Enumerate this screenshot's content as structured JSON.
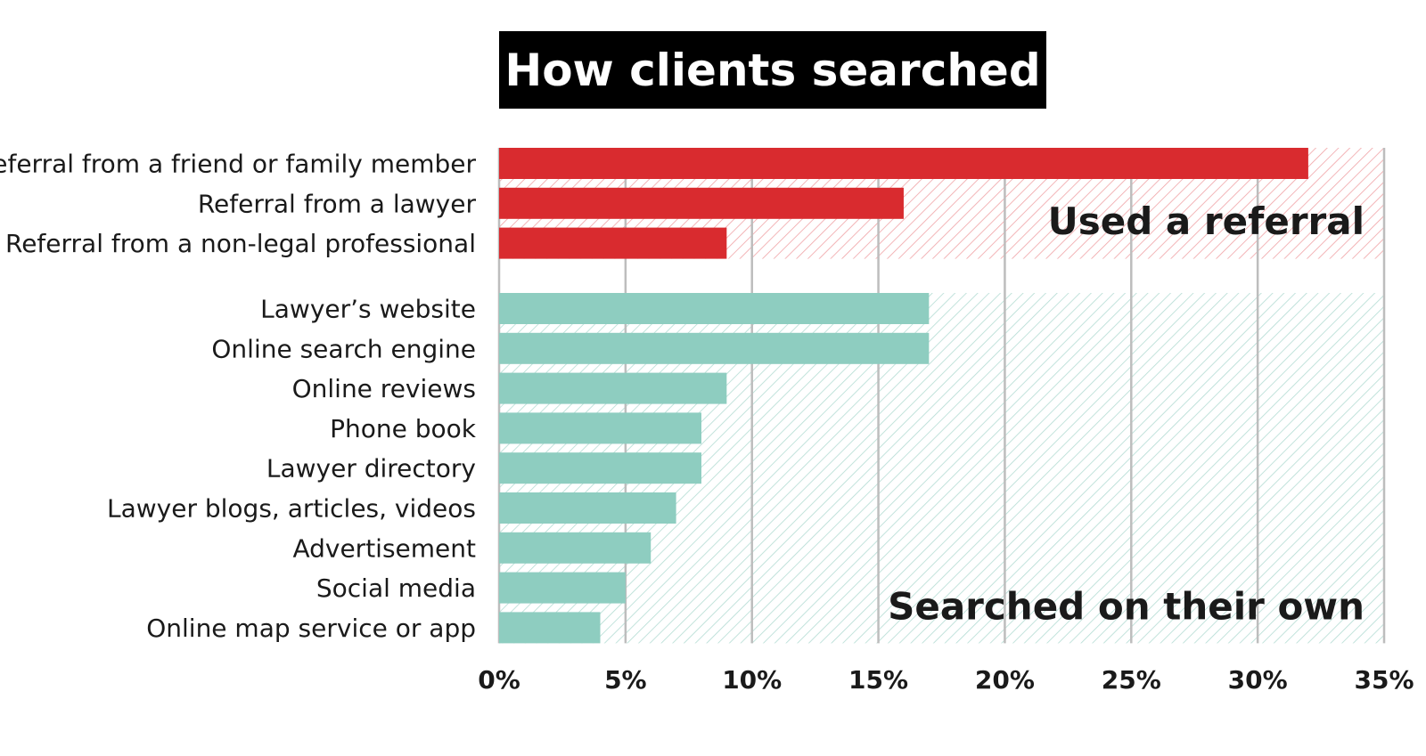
{
  "chart_data": {
    "type": "bar",
    "orientation": "horizontal",
    "title": "How clients searched",
    "xlabel": "",
    "ylabel": "",
    "xlim": [
      0,
      35
    ],
    "x_ticks": [
      "0%",
      "5%",
      "10%",
      "15%",
      "20%",
      "25%",
      "30%",
      "35%"
    ],
    "x_tick_values": [
      0,
      5,
      10,
      15,
      20,
      25,
      30,
      35
    ],
    "grid": true,
    "legend": "none",
    "groups": [
      {
        "label": "Used a referral",
        "color": "#d92b2f",
        "hatch_color": "#f0a3a6",
        "categories": [
          "Referral from a friend or family member",
          "Referral from a lawyer",
          "Referral from a non-legal professional"
        ],
        "values": [
          32,
          16,
          9
        ]
      },
      {
        "label": "Searched on their own",
        "color": "#8ecdc0",
        "hatch_color": "#b3dcd3",
        "categories": [
          "Lawyer’s website",
          "Online search engine",
          "Online reviews",
          "Phone book",
          "Lawyer directory",
          "Lawyer blogs, articles, videos",
          "Advertisement",
          "Social media",
          "Online map service or app"
        ],
        "values": [
          17,
          17,
          9,
          8,
          8,
          7,
          6,
          5,
          4
        ]
      }
    ]
  }
}
